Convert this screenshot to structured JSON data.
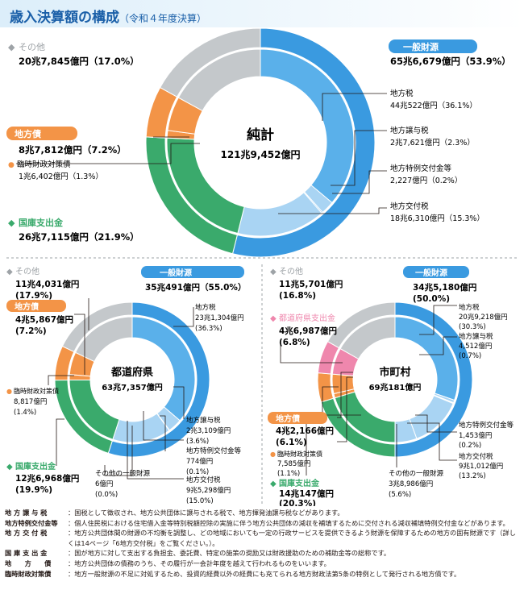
{
  "title": {
    "main": "歳入決算額の構成",
    "sub": "（令和４年度決算）"
  },
  "colors": {
    "blue_dark": "#3a9ae0",
    "blue_mid": "#5ab0ea",
    "blue_light": "#a9d4f3",
    "green": "#3aaa6c",
    "orange": "#f39447",
    "pink": "#ef87ad",
    "gray": "#c4c8cb"
  },
  "top": {
    "center_label": "純計",
    "center_value": "121兆9,452億円",
    "left": [
      {
        "name": "その他",
        "value": "20兆7,845億円（17.0%）",
        "marker": "◆",
        "color": "#9ea3a7"
      },
      {
        "name": "地方債",
        "value": "8兆7,812億円（7.2%）",
        "boxed": true,
        "color": "#f39447"
      },
      {
        "name": "臨時財政対策債",
        "value": "1兆6,402億円（1.3%）",
        "marker": "●",
        "color": "#f39447",
        "small": true
      },
      {
        "name": "国庫支出金",
        "value": "26兆7,115億円（21.9%）",
        "marker": "◆",
        "color": "#3aaa6c"
      }
    ],
    "right": [
      {
        "name": "一般財源",
        "value": "65兆6,679億円（53.9%）",
        "boxed": true,
        "color": "#3a9ae0"
      },
      {
        "name": "地方税",
        "value": "44兆522億円（36.1%）"
      },
      {
        "name": "地方譲与税",
        "value": "2兆7,621億円（2.3%）"
      },
      {
        "name": "地方特例交付金等",
        "value": "2,227億円（0.2%）"
      },
      {
        "name": "地方交付税",
        "value": "18兆6,310億円（15.3%）"
      }
    ]
  },
  "pref": {
    "center_label": "都道府県",
    "center_value": "63兆7,357億円",
    "labels": [
      {
        "name": "その他",
        "value1": "11兆4,031億円",
        "value2": "(17.9%)",
        "marker": "◆",
        "color": "#9ea3a7"
      },
      {
        "name": "地方債",
        "value1": "4兆5,867億円",
        "value2": "(7.2%)",
        "boxed": true,
        "color": "#f39447"
      },
      {
        "name": "臨時財政対策債",
        "value1": "8,817億円",
        "value2": "(1.4%)",
        "marker": "●",
        "color": "#f39447"
      },
      {
        "name": "国庫支出金",
        "value1": "12兆6,968億円",
        "value2": "(19.9%)",
        "marker": "◆",
        "color": "#3aaa6c"
      },
      {
        "name": "一般財源",
        "value1": "35兆491億円（55.0%）",
        "boxed": true,
        "color": "#3a9ae0"
      },
      {
        "name": "地方税",
        "value1": "23兆1,304億円",
        "value2": "(36.3%)"
      },
      {
        "name": "地方譲与税",
        "value1": "2兆3,109億円",
        "value2": "(3.6%)"
      },
      {
        "name": "地方特例交付金等",
        "value1": "774億円",
        "value2": "(0.1%)"
      },
      {
        "name": "地方交付税",
        "value1": "9兆5,298億円",
        "value2": "(15.0%)"
      },
      {
        "name": "その他の一般財源",
        "value1": "6億円",
        "value2": "(0.0%)"
      }
    ]
  },
  "city": {
    "center_label": "市町村",
    "center_value": "69兆181億円",
    "labels": [
      {
        "name": "その他",
        "value1": "11兆5,701億円",
        "value2": "(16.8%)",
        "marker": "◆",
        "color": "#9ea3a7"
      },
      {
        "name": "都道府県支出金",
        "value1": "4兆6,987億円",
        "value2": "(6.8%)",
        "marker": "◆",
        "color": "#ef87ad"
      },
      {
        "name": "地方債",
        "value1": "4兆2,166億円",
        "value2": "(6.1%)",
        "boxed": true,
        "color": "#f39447"
      },
      {
        "name": "臨時財政対策債",
        "value1": "7,585億円",
        "value2": "(1.1%)",
        "marker": "●",
        "color": "#f39447"
      },
      {
        "name": "国庫支出金",
        "value1": "14兆147億円",
        "value2": "(20.3%)",
        "marker": "◆",
        "color": "#3aaa6c"
      },
      {
        "name": "一般財源",
        "value1": "34兆5,180億円",
        "value2": "(50.0%)",
        "boxed": true,
        "color": "#3a9ae0"
      },
      {
        "name": "地方税",
        "value1": "20兆9,218億円",
        "value2": "(30.3%)"
      },
      {
        "name": "地方譲与税",
        "value1": "4,512億円",
        "value2": "(0.7%)"
      },
      {
        "name": "地方特例交付金等",
        "value1": "1,453億円",
        "value2": "(0.2%)"
      },
      {
        "name": "地方交付税",
        "value1": "9兆1,012億円",
        "value2": "(13.2%)"
      },
      {
        "name": "その他の一般財源",
        "value1": "3兆8,986億円",
        "value2": "(5.6%)"
      }
    ]
  },
  "chart_data": [
    {
      "type": "pie",
      "title": "純計",
      "center": "121兆9,452億円",
      "outer": [
        {
          "name": "一般財源",
          "value": 53.9,
          "color": "#3a9ae0"
        },
        {
          "name": "国庫支出金",
          "value": 21.9,
          "color": "#3aaa6c"
        },
        {
          "name": "地方債",
          "value": 7.2,
          "color": "#f39447"
        },
        {
          "name": "その他",
          "value": 17.0,
          "color": "#c4c8cb"
        }
      ],
      "inner": [
        {
          "name": "地方税",
          "value": 36.1,
          "color": "#5ab0ea"
        },
        {
          "name": "地方譲与税",
          "value": 2.3,
          "color": "#a9d4f3"
        },
        {
          "name": "地方特例交付金等",
          "value": 0.2,
          "color": "#5ab0ea"
        },
        {
          "name": "地方交付税",
          "value": 15.3,
          "color": "#a9d4f3"
        },
        {
          "name": "国庫支出金",
          "value": 21.9,
          "color": "#3aaa6c"
        },
        {
          "name": "臨時財政対策債",
          "value": 1.3,
          "color": "#f39447"
        },
        {
          "name": "地方債（臨時財政対策債以外）",
          "value": 5.9,
          "color": "#f39447"
        },
        {
          "name": "その他",
          "value": 17.0,
          "color": "#c4c8cb"
        }
      ]
    },
    {
      "type": "pie",
      "title": "都道府県",
      "center": "63兆7,357億円",
      "outer": [
        {
          "name": "一般財源",
          "value": 55.0,
          "color": "#3a9ae0"
        },
        {
          "name": "国庫支出金",
          "value": 19.9,
          "color": "#3aaa6c"
        },
        {
          "name": "地方債",
          "value": 7.2,
          "color": "#f39447"
        },
        {
          "name": "その他",
          "value": 17.9,
          "color": "#c4c8cb"
        }
      ],
      "inner": [
        {
          "name": "地方税",
          "value": 36.3,
          "color": "#5ab0ea"
        },
        {
          "name": "地方譲与税",
          "value": 3.6,
          "color": "#a9d4f3"
        },
        {
          "name": "地方特例交付金等",
          "value": 0.1,
          "color": "#5ab0ea"
        },
        {
          "name": "地方交付税",
          "value": 15.0,
          "color": "#a9d4f3"
        },
        {
          "name": "その他の一般財源",
          "value": 0.0,
          "color": "#a9d4f3"
        },
        {
          "name": "国庫支出金",
          "value": 19.9,
          "color": "#3aaa6c"
        },
        {
          "name": "臨時財政対策債",
          "value": 1.4,
          "color": "#f39447"
        },
        {
          "name": "地方債（臨時財政対策債以外）",
          "value": 5.8,
          "color": "#f39447"
        },
        {
          "name": "その他",
          "value": 17.9,
          "color": "#c4c8cb"
        }
      ]
    },
    {
      "type": "pie",
      "title": "市町村",
      "center": "69兆181億円",
      "outer": [
        {
          "name": "一般財源",
          "value": 50.0,
          "color": "#3a9ae0"
        },
        {
          "name": "国庫支出金",
          "value": 20.3,
          "color": "#3aaa6c"
        },
        {
          "name": "地方債",
          "value": 6.1,
          "color": "#f39447"
        },
        {
          "name": "都道府県支出金",
          "value": 6.8,
          "color": "#ef87ad"
        },
        {
          "name": "その他",
          "value": 16.8,
          "color": "#c4c8cb"
        }
      ],
      "inner": [
        {
          "name": "地方税",
          "value": 30.3,
          "color": "#5ab0ea"
        },
        {
          "name": "地方譲与税",
          "value": 0.7,
          "color": "#a9d4f3"
        },
        {
          "name": "地方特例交付金等",
          "value": 0.2,
          "color": "#5ab0ea"
        },
        {
          "name": "地方交付税",
          "value": 13.2,
          "color": "#a9d4f3"
        },
        {
          "name": "その他の一般財源",
          "value": 5.6,
          "color": "#a9d4f3"
        },
        {
          "name": "国庫支出金",
          "value": 20.3,
          "color": "#3aaa6c"
        },
        {
          "name": "臨時財政対策債",
          "value": 1.1,
          "color": "#f39447"
        },
        {
          "name": "地方債（臨時財政対策債以外）",
          "value": 5.0,
          "color": "#f39447"
        },
        {
          "name": "都道府県支出金",
          "value": 6.8,
          "color": "#ef87ad"
        },
        {
          "name": "その他",
          "value": 16.8,
          "color": "#c4c8cb"
        }
      ]
    }
  ],
  "footnotes": [
    {
      "key": "地 方 譲 与 税",
      "text": "：国税として徴収され、地方公共団体に譲与される税で、地方揮発油譲与税などがあります。"
    },
    {
      "key": "地方特例交付金等",
      "text": "：個人住民税における住宅借入金等特別税額控除の実施に伴う地方公共団体の減収を補填するために交付される減収補填特例交付金などがあります。"
    },
    {
      "key": "地 方 交 付 税",
      "text": "：地方公共団体間の財源の不均衡を調整し、どの地域においても一定の行政サービスを提供できるよう財源を保障するための地方の固有財源です（詳しくは14ページ「6地方交付税」をご覧ください。）。"
    },
    {
      "key": "国 庫 支 出 金",
      "text": "：国が地方に対して支出する負担金、委託費、特定の施策の奨励又は財政援助のための補助金等の総称です。"
    },
    {
      "key": "地　　方　　債",
      "text": "：地方公共団体の債務のうち、その履行が一会計年度を越えて行われるものをいいます。"
    },
    {
      "key": "臨時財政対策債",
      "text": "：地方一般財源の不足に対処するため、投資的経費以外の経費にも充てられる地方財政法第5条の特例として発行される地方債です。"
    }
  ]
}
